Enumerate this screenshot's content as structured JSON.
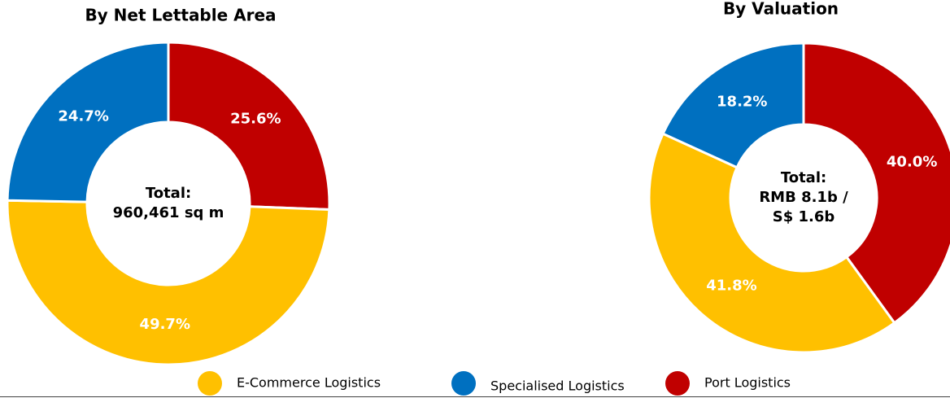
{
  "chart_data": [
    {
      "type": "pie",
      "title": "By Net Lettable Area",
      "categories": [
        "Port Logistics",
        "E-Commerce Logistics",
        "Specialised Logistics"
      ],
      "values": [
        25.6,
        49.7,
        24.7
      ],
      "value_labels": [
        "25.6%",
        "49.7%",
        "24.7%"
      ],
      "colors": [
        "#c00000",
        "#ffc000",
        "#0070c0"
      ],
      "center_text": [
        "Total:",
        "960,461 sq m"
      ]
    },
    {
      "type": "pie",
      "title": "By Valuation",
      "categories": [
        "Port Logistics",
        "E-Commerce Logistics",
        "Specialised Logistics"
      ],
      "values": [
        40.0,
        41.8,
        18.2
      ],
      "value_labels": [
        "40.0%",
        "41.8%",
        "18.2%"
      ],
      "colors": [
        "#c00000",
        "#ffc000",
        "#0070c0"
      ],
      "center_text": [
        "Total:",
        "RMB 8.1b /",
        "S$ 1.6b"
      ]
    }
  ]
}
